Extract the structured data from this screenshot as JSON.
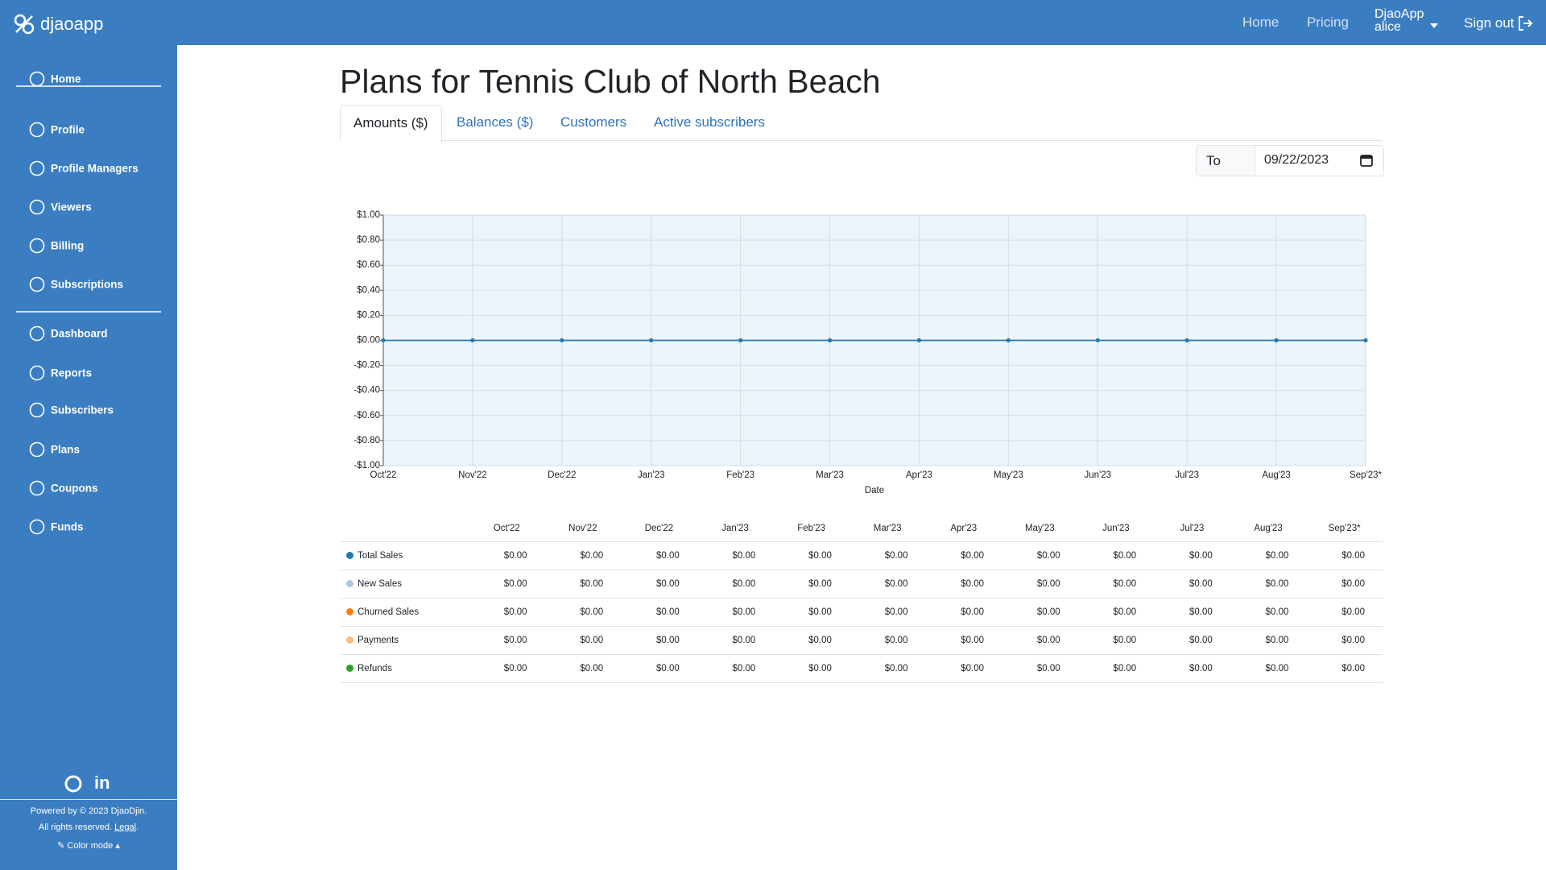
{
  "brand": "djaoapp",
  "topnav": {
    "links": [
      "Home",
      "Pricing"
    ],
    "org": "DjaoApp",
    "user": "alice",
    "signout": "Sign out"
  },
  "sidebar": {
    "groups": [
      [
        "Home"
      ],
      [
        "Profile",
        "Profile Managers",
        "Viewers",
        "Billing",
        "Subscriptions"
      ],
      [
        "Dashboard",
        "Reports",
        "Subscribers",
        "Plans",
        "Coupons",
        "Funds"
      ]
    ],
    "footer": {
      "powered": "Powered by © 2023 DjaoDjin.",
      "rights": "All rights reserved.",
      "legal": "Legal",
      "color_mode": "Color mode"
    }
  },
  "title": "Plans for Tennis Club of North Beach",
  "tabs": [
    "Amounts ($)",
    "Balances ($)",
    "Customers",
    "Active subscribers"
  ],
  "filter": {
    "label": "To",
    "date": "09/22/2023"
  },
  "chart_data": {
    "type": "line",
    "x_label": "Date",
    "categories": [
      "Oct'22",
      "Nov'22",
      "Dec'22",
      "Jan'23",
      "Feb'23",
      "Mar'23",
      "Apr'23",
      "May'23",
      "Jun'23",
      "Jul'23",
      "Aug'23",
      "Sep'23*"
    ],
    "series": [
      {
        "name": "Total Sales",
        "color": "#1f77b4",
        "values": [
          0,
          0,
          0,
          0,
          0,
          0,
          0,
          0,
          0,
          0,
          0,
          0
        ]
      },
      {
        "name": "New Sales",
        "color": "#aec7e8",
        "values": [
          0,
          0,
          0,
          0,
          0,
          0,
          0,
          0,
          0,
          0,
          0,
          0
        ]
      },
      {
        "name": "Churned Sales",
        "color": "#ff7f0e",
        "values": [
          0,
          0,
          0,
          0,
          0,
          0,
          0,
          0,
          0,
          0,
          0,
          0
        ]
      },
      {
        "name": "Payments",
        "color": "#ffbb78",
        "values": [
          0,
          0,
          0,
          0,
          0,
          0,
          0,
          0,
          0,
          0,
          0,
          0
        ]
      },
      {
        "name": "Refunds",
        "color": "#2ca02c",
        "values": [
          0,
          0,
          0,
          0,
          0,
          0,
          0,
          0,
          0,
          0,
          0,
          0
        ]
      }
    ],
    "ylim": [
      -1,
      1
    ],
    "yticks": [
      {
        "value": -1,
        "label": "-$1.00"
      },
      {
        "value": -0.8,
        "label": "-$0.80"
      },
      {
        "value": -0.6,
        "label": "-$0.60"
      },
      {
        "value": -0.4,
        "label": "-$0.40"
      },
      {
        "value": -0.2,
        "label": "-$0.20"
      },
      {
        "value": 0,
        "label": "$0.00"
      },
      {
        "value": 0.2,
        "label": "$0.20"
      },
      {
        "value": 0.4,
        "label": "$0.40"
      },
      {
        "value": 0.6,
        "label": "$0.60"
      },
      {
        "value": 0.8,
        "label": "$0.80"
      },
      {
        "value": 1,
        "label": "$1.00"
      }
    ],
    "grid": true
  },
  "table": {
    "rows": [
      [
        "$0.00",
        "$0.00",
        "$0.00",
        "$0.00",
        "$0.00",
        "$0.00",
        "$0.00",
        "$0.00",
        "$0.00",
        "$0.00",
        "$0.00",
        "$0.00"
      ],
      [
        "$0.00",
        "$0.00",
        "$0.00",
        "$0.00",
        "$0.00",
        "$0.00",
        "$0.00",
        "$0.00",
        "$0.00",
        "$0.00",
        "$0.00",
        "$0.00"
      ],
      [
        "$0.00",
        "$0.00",
        "$0.00",
        "$0.00",
        "$0.00",
        "$0.00",
        "$0.00",
        "$0.00",
        "$0.00",
        "$0.00",
        "$0.00",
        "$0.00"
      ],
      [
        "$0.00",
        "$0.00",
        "$0.00",
        "$0.00",
        "$0.00",
        "$0.00",
        "$0.00",
        "$0.00",
        "$0.00",
        "$0.00",
        "$0.00",
        "$0.00"
      ],
      [
        "$0.00",
        "$0.00",
        "$0.00",
        "$0.00",
        "$0.00",
        "$0.00",
        "$0.00",
        "$0.00",
        "$0.00",
        "$0.00",
        "$0.00",
        "$0.00"
      ]
    ]
  }
}
